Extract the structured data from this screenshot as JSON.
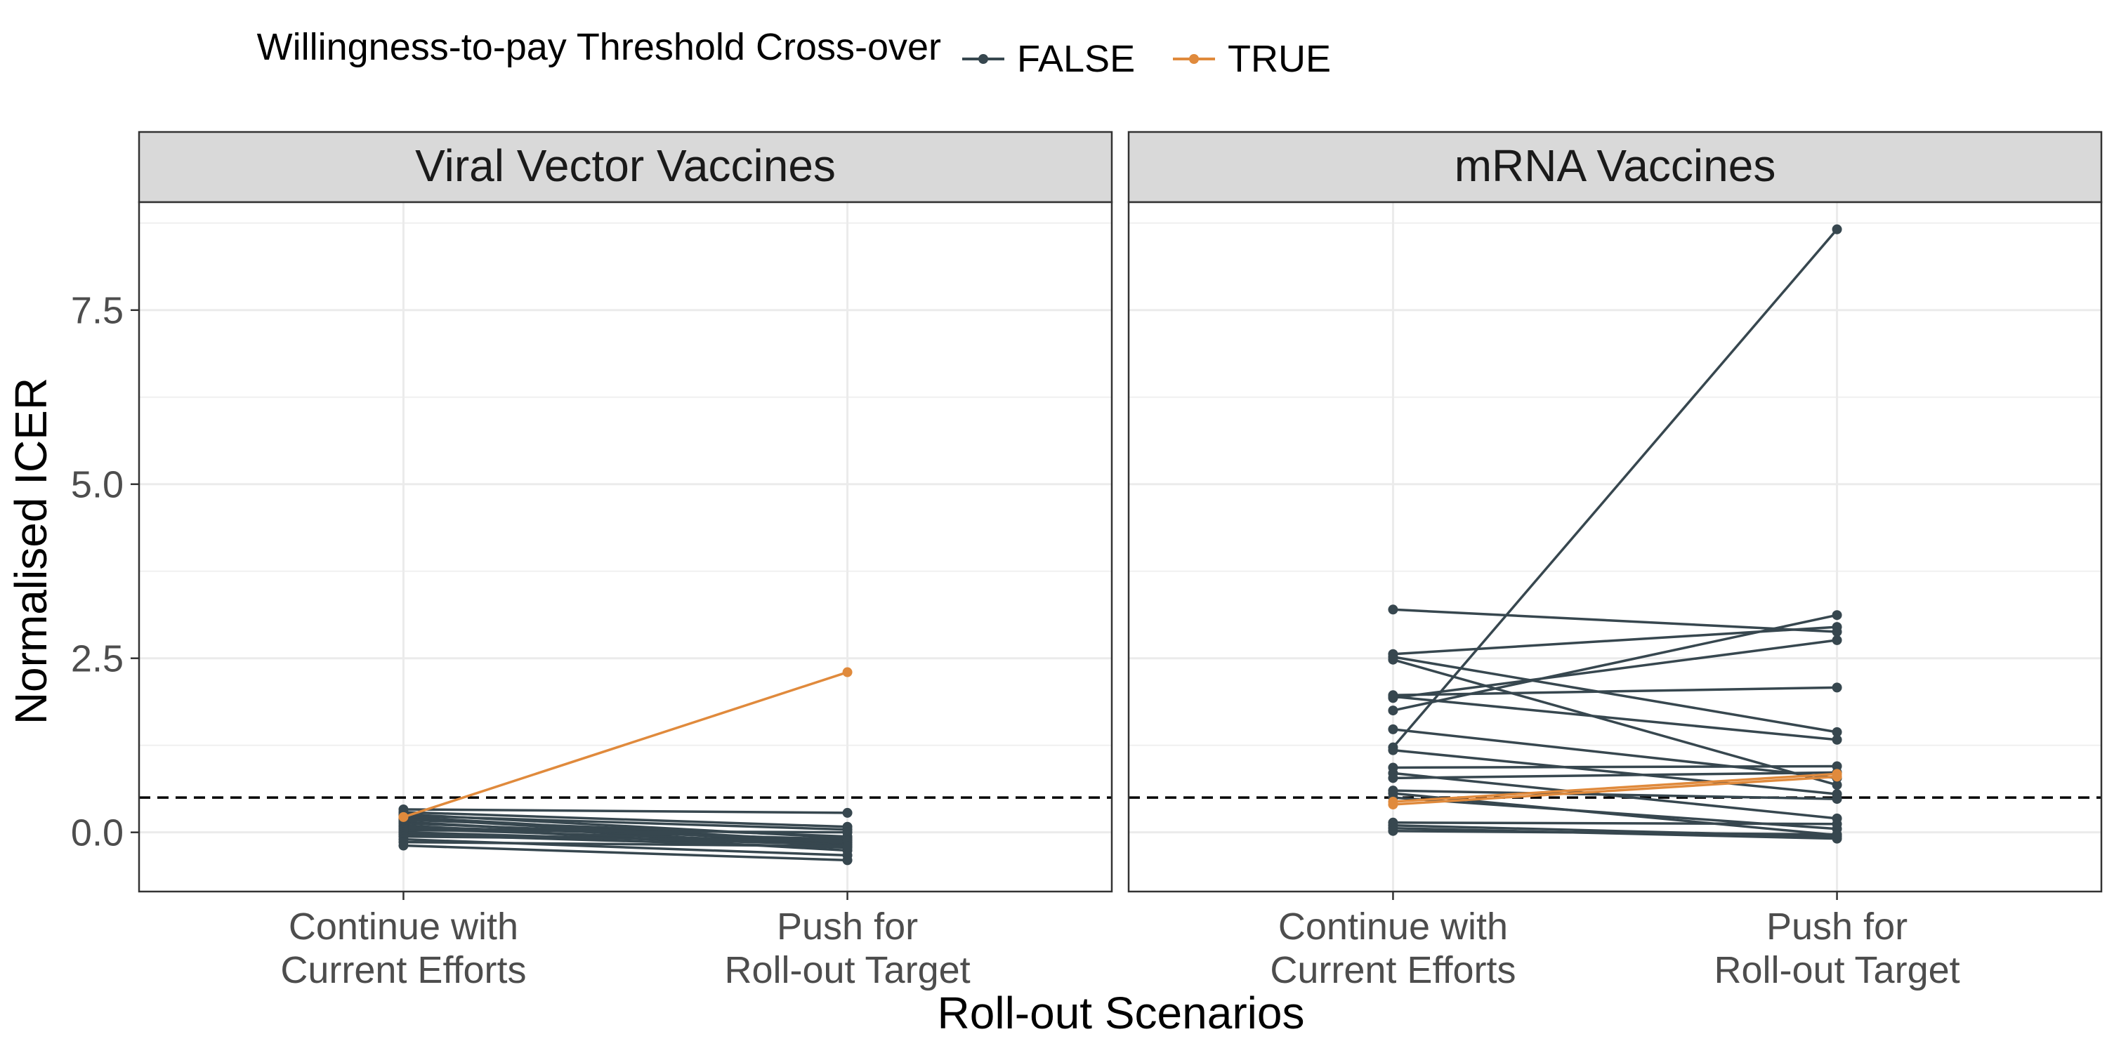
{
  "chart_data": {
    "type": "line",
    "xlabel": "Roll-out Scenarios",
    "ylabel": "Normalised ICER",
    "x_categories": [
      [
        "Continue with",
        "Current Efforts"
      ],
      [
        "Push for",
        "Roll-out Target"
      ]
    ],
    "y_ticks": [
      "0.0",
      "2.5",
      "5.0",
      "7.5"
    ],
    "y_tick_values": [
      0,
      2.5,
      5,
      7.5
    ],
    "ylim": [
      -0.85,
      9.05
    ],
    "threshold": 0.5,
    "grid": true,
    "legend": {
      "title": "Willingness-to-pay Threshold Cross-over",
      "position": "top",
      "entries": [
        {
          "label": "FALSE",
          "color": "#37474f"
        },
        {
          "label": "TRUE",
          "color": "#e08a3c"
        }
      ]
    },
    "panels": [
      {
        "title": "Viral Vector Vaccines",
        "series": [
          {
            "values": [
              0.33,
              0.28
            ],
            "crossover": false
          },
          {
            "values": [
              0.29,
              0.08
            ],
            "crossover": false
          },
          {
            "values": [
              0.26,
              -0.08
            ],
            "crossover": false
          },
          {
            "values": [
              0.24,
              0.04
            ],
            "crossover": false
          },
          {
            "values": [
              0.22,
              -0.14
            ],
            "crossover": false
          },
          {
            "values": [
              0.2,
              -0.17
            ],
            "crossover": false
          },
          {
            "values": [
              0.18,
              -0.06
            ],
            "crossover": false
          },
          {
            "values": [
              0.15,
              -0.2
            ],
            "crossover": false
          },
          {
            "values": [
              0.13,
              -0.12
            ],
            "crossover": false
          },
          {
            "values": [
              0.1,
              -0.26
            ],
            "crossover": false
          },
          {
            "values": [
              0.08,
              -0.1
            ],
            "crossover": false
          },
          {
            "values": [
              0.05,
              -0.15
            ],
            "crossover": false
          },
          {
            "values": [
              0.03,
              0.0
            ],
            "crossover": false
          },
          {
            "values": [
              0.0,
              -0.18
            ],
            "crossover": false
          },
          {
            "values": [
              -0.03,
              -0.22
            ],
            "crossover": false
          },
          {
            "values": [
              -0.06,
              -0.12
            ],
            "crossover": false
          },
          {
            "values": [
              -0.1,
              -0.33
            ],
            "crossover": false
          },
          {
            "values": [
              -0.14,
              -0.2
            ],
            "crossover": false
          },
          {
            "values": [
              -0.19,
              -0.4
            ],
            "crossover": false
          },
          {
            "values": [
              0.22,
              2.3
            ],
            "crossover": true
          }
        ]
      },
      {
        "title": "mRNA Vaccines",
        "series": [
          {
            "values": [
              1.22,
              8.66
            ],
            "crossover": false
          },
          {
            "values": [
              3.2,
              2.88
            ],
            "crossover": false
          },
          {
            "values": [
              2.56,
              2.95
            ],
            "crossover": false
          },
          {
            "values": [
              2.52,
              1.44
            ],
            "crossover": false
          },
          {
            "values": [
              2.48,
              0.68
            ],
            "crossover": false
          },
          {
            "values": [
              1.97,
              2.08
            ],
            "crossover": false
          },
          {
            "values": [
              1.93,
              2.76
            ],
            "crossover": false
          },
          {
            "values": [
              1.75,
              3.12
            ],
            "crossover": false
          },
          {
            "values": [
              1.48,
              0.78
            ],
            "crossover": false
          },
          {
            "values": [
              1.95,
              1.33
            ],
            "crossover": false
          },
          {
            "values": [
              1.18,
              0.55
            ],
            "crossover": false
          },
          {
            "values": [
              0.93,
              0.95
            ],
            "crossover": false
          },
          {
            "values": [
              0.85,
              0.2
            ],
            "crossover": false
          },
          {
            "values": [
              0.78,
              0.86
            ],
            "crossover": false
          },
          {
            "values": [
              0.6,
              0.48
            ],
            "crossover": false
          },
          {
            "values": [
              0.56,
              -0.04
            ],
            "crossover": false
          },
          {
            "values": [
              0.5,
              0.05
            ],
            "crossover": false
          },
          {
            "values": [
              0.14,
              0.12
            ],
            "crossover": false
          },
          {
            "values": [
              0.1,
              -0.06
            ],
            "crossover": false
          },
          {
            "values": [
              0.06,
              -0.09
            ],
            "crossover": false
          },
          {
            "values": [
              0.02,
              -0.03
            ],
            "crossover": false
          },
          {
            "values": [
              0.44,
              0.84
            ],
            "crossover": true
          },
          {
            "values": [
              0.4,
              0.8
            ],
            "crossover": true
          }
        ]
      }
    ]
  }
}
